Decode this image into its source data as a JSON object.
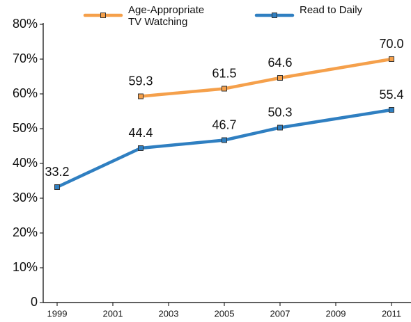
{
  "chart_data": {
    "type": "line",
    "series": [
      {
        "name": "Age-Appropriate TV Watching",
        "color": "#f5a04b",
        "x": [
          2002,
          2005,
          2007,
          2011
        ],
        "values": [
          59.3,
          61.5,
          64.6,
          70.0
        ],
        "value_labels": [
          "59.3",
          "61.5",
          "64.6",
          "70.0"
        ]
      },
      {
        "name": "Read to Daily",
        "color": "#2f7fc1",
        "x": [
          1999,
          2002,
          2005,
          2007,
          2011
        ],
        "values": [
          33.2,
          44.4,
          46.7,
          50.3,
          55.4
        ],
        "value_labels": [
          "33.2",
          "44.4",
          "46.7",
          "50.3",
          "55.4"
        ]
      }
    ],
    "xlim": [
      1998.5,
      2011.7
    ],
    "xticks": [
      1999,
      2001,
      2003,
      2005,
      2007,
      2009,
      2011
    ],
    "ylim": [
      0,
      80
    ],
    "yticks": [
      0,
      {
        "value": 10,
        "label": "10%"
      },
      {
        "value": 20,
        "label": "20%"
      },
      {
        "value": 30,
        "label": "30%"
      },
      {
        "value": 40,
        "label": "40%"
      },
      {
        "value": 50,
        "label": "50%"
      },
      {
        "value": 60,
        "label": "60%"
      },
      {
        "value": 70,
        "label": "70%"
      },
      {
        "value": 80,
        "label": "80%"
      }
    ],
    "legend": "top"
  }
}
